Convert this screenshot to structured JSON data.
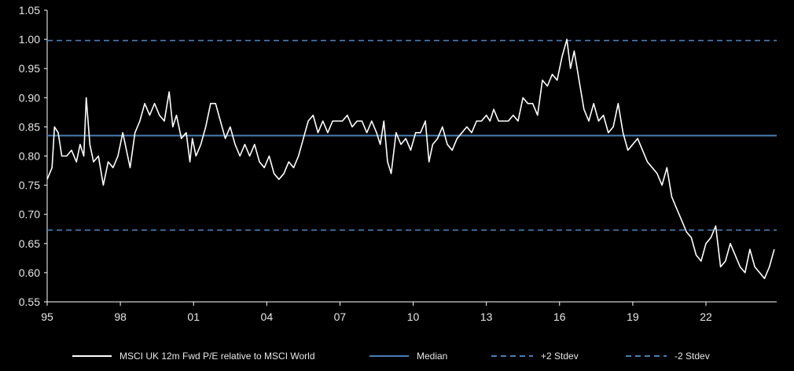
{
  "chart_data": {
    "type": "line",
    "title": "",
    "xlabel": "",
    "ylabel": "",
    "x_tick_labels": [
      "95",
      "98",
      "01",
      "04",
      "07",
      "10",
      "13",
      "16",
      "19",
      "22"
    ],
    "x_tick_years": [
      1995,
      1998,
      2001,
      2004,
      2007,
      2010,
      2013,
      2016,
      2019,
      2022
    ],
    "xlim": [
      1995,
      2024.9
    ],
    "y_tick_labels": [
      "1.05",
      "1.00",
      "0.95",
      "0.90",
      "0.85",
      "0.80",
      "0.75",
      "0.70",
      "0.65",
      "0.60",
      "0.55"
    ],
    "ylim": [
      0.55,
      1.05
    ],
    "grid": false,
    "legend_position": "bottom",
    "series": [
      {
        "name": "MSCI UK 12m Fwd P/E relative to MSCI World",
        "color": "#ffffff",
        "style": "solid",
        "points": [
          [
            1995.0,
            0.76
          ],
          [
            1995.2,
            0.78
          ],
          [
            1995.3,
            0.85
          ],
          [
            1995.45,
            0.84
          ],
          [
            1995.6,
            0.8
          ],
          [
            1995.8,
            0.8
          ],
          [
            1996.0,
            0.81
          ],
          [
            1996.2,
            0.79
          ],
          [
            1996.35,
            0.82
          ],
          [
            1996.5,
            0.8
          ],
          [
            1996.6,
            0.9
          ],
          [
            1996.75,
            0.82
          ],
          [
            1996.9,
            0.79
          ],
          [
            1997.1,
            0.8
          ],
          [
            1997.3,
            0.75
          ],
          [
            1997.5,
            0.79
          ],
          [
            1997.7,
            0.78
          ],
          [
            1997.9,
            0.8
          ],
          [
            1998.1,
            0.84
          ],
          [
            1998.3,
            0.8
          ],
          [
            1998.4,
            0.78
          ],
          [
            1998.6,
            0.84
          ],
          [
            1998.8,
            0.86
          ],
          [
            1999.0,
            0.89
          ],
          [
            1999.2,
            0.87
          ],
          [
            1999.4,
            0.89
          ],
          [
            1999.6,
            0.87
          ],
          [
            1999.8,
            0.86
          ],
          [
            2000.0,
            0.91
          ],
          [
            2000.15,
            0.85
          ],
          [
            2000.3,
            0.87
          ],
          [
            2000.5,
            0.83
          ],
          [
            2000.7,
            0.84
          ],
          [
            2000.85,
            0.79
          ],
          [
            2000.95,
            0.83
          ],
          [
            2001.1,
            0.8
          ],
          [
            2001.3,
            0.82
          ],
          [
            2001.5,
            0.85
          ],
          [
            2001.7,
            0.89
          ],
          [
            2001.9,
            0.89
          ],
          [
            2002.1,
            0.86
          ],
          [
            2002.3,
            0.83
          ],
          [
            2002.5,
            0.85
          ],
          [
            2002.7,
            0.82
          ],
          [
            2002.9,
            0.8
          ],
          [
            2003.1,
            0.82
          ],
          [
            2003.3,
            0.8
          ],
          [
            2003.5,
            0.82
          ],
          [
            2003.7,
            0.79
          ],
          [
            2003.9,
            0.78
          ],
          [
            2004.1,
            0.8
          ],
          [
            2004.3,
            0.77
          ],
          [
            2004.5,
            0.76
          ],
          [
            2004.7,
            0.77
          ],
          [
            2004.9,
            0.79
          ],
          [
            2005.1,
            0.78
          ],
          [
            2005.3,
            0.8
          ],
          [
            2005.5,
            0.83
          ],
          [
            2005.7,
            0.86
          ],
          [
            2005.9,
            0.87
          ],
          [
            2006.1,
            0.84
          ],
          [
            2006.3,
            0.86
          ],
          [
            2006.5,
            0.84
          ],
          [
            2006.7,
            0.86
          ],
          [
            2006.9,
            0.86
          ],
          [
            2007.1,
            0.86
          ],
          [
            2007.3,
            0.87
          ],
          [
            2007.5,
            0.85
          ],
          [
            2007.7,
            0.86
          ],
          [
            2007.9,
            0.86
          ],
          [
            2008.1,
            0.84
          ],
          [
            2008.3,
            0.86
          ],
          [
            2008.5,
            0.84
          ],
          [
            2008.65,
            0.82
          ],
          [
            2008.8,
            0.86
          ],
          [
            2008.95,
            0.79
          ],
          [
            2009.1,
            0.77
          ],
          [
            2009.3,
            0.84
          ],
          [
            2009.5,
            0.82
          ],
          [
            2009.7,
            0.83
          ],
          [
            2009.9,
            0.81
          ],
          [
            2010.1,
            0.84
          ],
          [
            2010.3,
            0.84
          ],
          [
            2010.5,
            0.86
          ],
          [
            2010.65,
            0.79
          ],
          [
            2010.8,
            0.82
          ],
          [
            2011.0,
            0.83
          ],
          [
            2011.2,
            0.85
          ],
          [
            2011.4,
            0.82
          ],
          [
            2011.6,
            0.81
          ],
          [
            2011.8,
            0.83
          ],
          [
            2012.0,
            0.84
          ],
          [
            2012.2,
            0.85
          ],
          [
            2012.4,
            0.84
          ],
          [
            2012.6,
            0.86
          ],
          [
            2012.8,
            0.86
          ],
          [
            2013.0,
            0.87
          ],
          [
            2013.15,
            0.86
          ],
          [
            2013.3,
            0.88
          ],
          [
            2013.5,
            0.86
          ],
          [
            2013.7,
            0.86
          ],
          [
            2013.9,
            0.86
          ],
          [
            2014.1,
            0.87
          ],
          [
            2014.3,
            0.86
          ],
          [
            2014.5,
            0.9
          ],
          [
            2014.7,
            0.89
          ],
          [
            2014.9,
            0.89
          ],
          [
            2015.1,
            0.87
          ],
          [
            2015.3,
            0.93
          ],
          [
            2015.5,
            0.92
          ],
          [
            2015.7,
            0.94
          ],
          [
            2015.9,
            0.93
          ],
          [
            2016.1,
            0.97
          ],
          [
            2016.3,
            1.0
          ],
          [
            2016.45,
            0.95
          ],
          [
            2016.6,
            0.98
          ],
          [
            2016.8,
            0.93
          ],
          [
            2017.0,
            0.88
          ],
          [
            2017.2,
            0.86
          ],
          [
            2017.4,
            0.89
          ],
          [
            2017.6,
            0.86
          ],
          [
            2017.8,
            0.87
          ],
          [
            2018.0,
            0.84
          ],
          [
            2018.2,
            0.85
          ],
          [
            2018.4,
            0.89
          ],
          [
            2018.6,
            0.84
          ],
          [
            2018.8,
            0.81
          ],
          [
            2019.0,
            0.82
          ],
          [
            2019.2,
            0.83
          ],
          [
            2019.4,
            0.81
          ],
          [
            2019.6,
            0.79
          ],
          [
            2019.8,
            0.78
          ],
          [
            2020.0,
            0.77
          ],
          [
            2020.2,
            0.75
          ],
          [
            2020.4,
            0.78
          ],
          [
            2020.6,
            0.73
          ],
          [
            2020.8,
            0.71
          ],
          [
            2021.0,
            0.69
          ],
          [
            2021.2,
            0.67
          ],
          [
            2021.4,
            0.66
          ],
          [
            2021.6,
            0.63
          ],
          [
            2021.8,
            0.62
          ],
          [
            2022.0,
            0.65
          ],
          [
            2022.2,
            0.66
          ],
          [
            2022.4,
            0.68
          ],
          [
            2022.6,
            0.61
          ],
          [
            2022.8,
            0.62
          ],
          [
            2023.0,
            0.65
          ],
          [
            2023.2,
            0.63
          ],
          [
            2023.4,
            0.61
          ],
          [
            2023.6,
            0.6
          ],
          [
            2023.8,
            0.64
          ],
          [
            2024.0,
            0.61
          ],
          [
            2024.2,
            0.6
          ],
          [
            2024.4,
            0.59
          ],
          [
            2024.6,
            0.61
          ],
          [
            2024.8,
            0.64
          ]
        ]
      },
      {
        "name": "Median",
        "color": "#4a7eb5",
        "style": "solid",
        "constant": 0.835
      },
      {
        "name": "+2 Stdev",
        "color": "#4a7eb5",
        "style": "dashed",
        "constant": 0.998
      },
      {
        "name": "-2 Stdev",
        "color": "#4a7eb5",
        "style": "dashed",
        "constant": 0.673
      }
    ]
  }
}
